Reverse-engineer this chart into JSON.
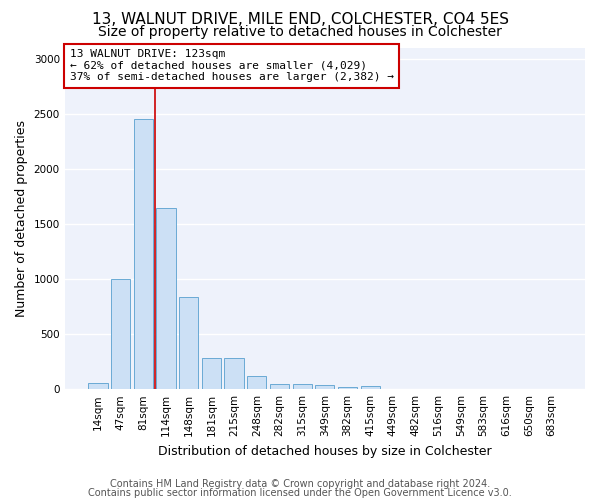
{
  "title_line1": "13, WALNUT DRIVE, MILE END, COLCHESTER, CO4 5ES",
  "title_line2": "Size of property relative to detached houses in Colchester",
  "xlabel": "Distribution of detached houses by size in Colchester",
  "ylabel": "Number of detached properties",
  "bin_labels": [
    "14sqm",
    "47sqm",
    "81sqm",
    "114sqm",
    "148sqm",
    "181sqm",
    "215sqm",
    "248sqm",
    "282sqm",
    "315sqm",
    "349sqm",
    "382sqm",
    "415sqm",
    "449sqm",
    "482sqm",
    "516sqm",
    "549sqm",
    "583sqm",
    "616sqm",
    "650sqm",
    "683sqm"
  ],
  "bar_heights": [
    55,
    1000,
    2450,
    1640,
    835,
    280,
    280,
    120,
    50,
    45,
    35,
    20,
    25,
    0,
    0,
    0,
    0,
    0,
    0,
    0,
    0
  ],
  "bar_color": "#cce0f5",
  "bar_edge_color": "#6aaad4",
  "vline_color": "#cc0000",
  "vline_x": 2.5,
  "annotation_text": "13 WALNUT DRIVE: 123sqm\n← 62% of detached houses are smaller (4,029)\n37% of semi-detached houses are larger (2,382) →",
  "annotation_box_color": "white",
  "annotation_box_edge_color": "#cc0000",
  "ylim": [
    0,
    3100
  ],
  "yticks": [
    0,
    500,
    1000,
    1500,
    2000,
    2500,
    3000
  ],
  "footer_line1": "Contains HM Land Registry data © Crown copyright and database right 2024.",
  "footer_line2": "Contains public sector information licensed under the Open Government Licence v3.0.",
  "background_color": "#eef2fb",
  "grid_color": "white",
  "title_fontsize": 11,
  "subtitle_fontsize": 10,
  "axis_label_fontsize": 9,
  "tick_fontsize": 7.5,
  "annotation_fontsize": 8,
  "footer_fontsize": 7
}
